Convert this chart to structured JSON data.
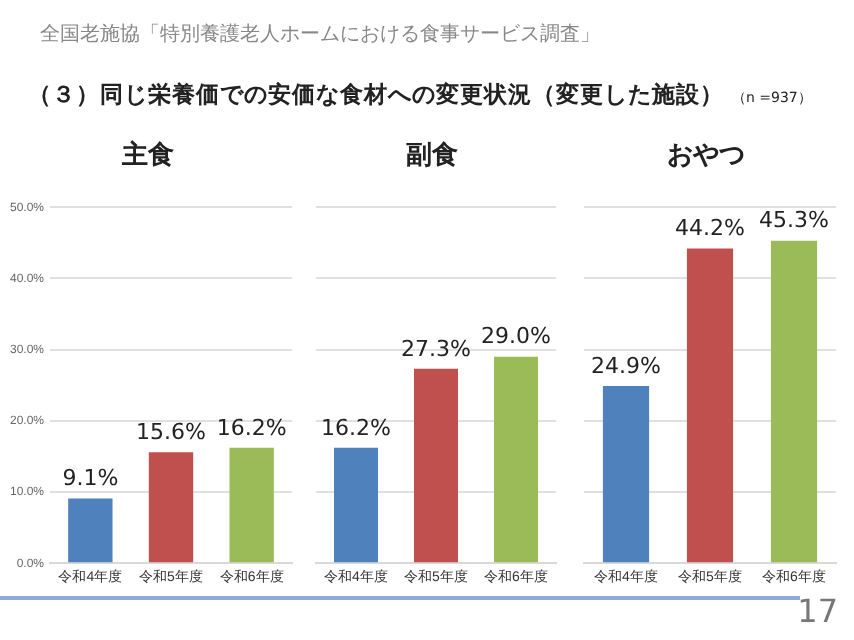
{
  "chart_data": [
    {
      "type": "bar",
      "title": "主食",
      "categories": [
        "令和4年度",
        "令和5年度",
        "令和6年度"
      ],
      "values": [
        9.1,
        15.6,
        16.2
      ],
      "colors": [
        "#4f81bd",
        "#c0504d",
        "#9bbb59"
      ],
      "value_labels": [
        "9.1%",
        "15.6%",
        "16.2%"
      ],
      "ylim": [
        0,
        50
      ],
      "yticks": [
        {
          "value": 0,
          "label": "0.0%"
        },
        {
          "value": 10,
          "label": "10.0%"
        },
        {
          "value": 20,
          "label": "20.0%"
        },
        {
          "value": 30,
          "label": "30.0%"
        },
        {
          "value": 40,
          "label": "40.0%"
        },
        {
          "value": 50,
          "label": "50.0%"
        }
      ],
      "grid": "y",
      "legend": false,
      "annotations": [
        "全国老施協「特別養護老人ホームにおける食事サービス調査」",
        "（３）同じ栄養価での安価な食材への変更状況（変更した施設）",
        "（n =937）",
        "17"
      ]
    },
    {
      "type": "bar",
      "title": "副食",
      "categories": [
        "令和4年度",
        "令和5年度",
        "令和6年度"
      ],
      "values": [
        16.2,
        27.3,
        29.0
      ],
      "colors": [
        "#4f81bd",
        "#c0504d",
        "#9bbb59"
      ],
      "value_labels": [
        "16.2%",
        "27.3%",
        "29.0%"
      ],
      "ylim": [
        0,
        50
      ],
      "yticks": [
        0,
        10,
        20,
        30,
        40,
        50
      ],
      "grid": "y",
      "legend": false,
      "tick_labels": "x"
    },
    {
      "type": "bar",
      "title": "おやつ",
      "categories": [
        "令和4年度",
        "令和5年度",
        "令和6年度"
      ],
      "values": [
        24.9,
        44.2,
        45.3
      ],
      "colors": [
        "#4f81bd",
        "#c0504d",
        "#9bbb59"
      ],
      "value_labels": [
        "24.9%",
        "44.2%",
        "45.3%"
      ],
      "ylim": [
        0,
        50
      ],
      "yticks": [
        0,
        10,
        20,
        30,
        40,
        50
      ],
      "grid": "y",
      "legend": false,
      "tick_labels": "x"
    }
  ]
}
